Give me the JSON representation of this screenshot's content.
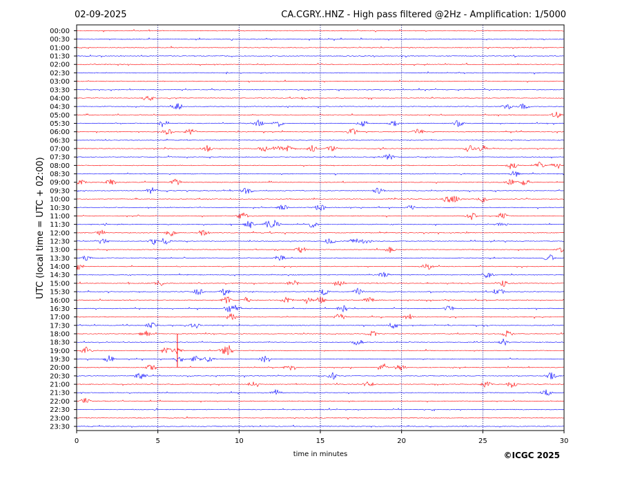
{
  "header": {
    "date": "02-09-2025",
    "title": "CA.CGRY..HNZ - High pass filtered @2Hz - Amplification: 1/5000"
  },
  "footer": {
    "copyright": "©ICGC 2025"
  },
  "colors": {
    "trace_a": "#ff0000",
    "trace_b": "#0000ff",
    "axis": "#000000",
    "grid": "#000080"
  },
  "chart_data": {
    "type": "line",
    "chart_kind": "helicorder",
    "xlabel": "time in minutes",
    "ylabel": "UTC (local time = UTC + 02:00)",
    "xlim": [
      0,
      30
    ],
    "x_ticks": [
      "0",
      "5",
      "10",
      "15",
      "20",
      "25",
      "30"
    ],
    "vertical_gridlines_at": [
      5,
      10,
      15,
      20,
      25
    ],
    "rows": [
      "00:00",
      "00:30",
      "01:00",
      "01:30",
      "02:00",
      "02:30",
      "03:00",
      "03:30",
      "04:00",
      "04:30",
      "05:00",
      "05:30",
      "06:00",
      "06:30",
      "07:00",
      "07:30",
      "08:00",
      "08:30",
      "09:00",
      "09:30",
      "10:00",
      "10:30",
      "11:00",
      "11:30",
      "12:00",
      "12:30",
      "13:00",
      "13:30",
      "14:00",
      "14:30",
      "15:00",
      "15:30",
      "16:00",
      "16:30",
      "17:00",
      "17:30",
      "18:00",
      "18:30",
      "19:00",
      "19:30",
      "20:00",
      "20:30",
      "21:00",
      "21:30",
      "22:00",
      "22:30",
      "23:00",
      "23:30"
    ],
    "row_colors_alternate": [
      "#ff0000",
      "#0000ff"
    ],
    "events": [
      {
        "row": "04:00",
        "minutes": [
          4.4
        ]
      },
      {
        "row": "04:30",
        "minutes": [
          6.2,
          26.5,
          27.5
        ]
      },
      {
        "row": "05:00",
        "minutes": [
          29.5
        ]
      },
      {
        "row": "05:30",
        "minutes": [
          5.4,
          11.2,
          12.4,
          17.6,
          19.5,
          23.5
        ]
      },
      {
        "row": "06:00",
        "minutes": [
          5.6,
          7.0,
          17.0,
          21.0
        ]
      },
      {
        "row": "07:00",
        "minutes": [
          8.0,
          11.5,
          12.3,
          13.0,
          14.5,
          15.7,
          24.2,
          25.0
        ]
      },
      {
        "row": "07:30",
        "minutes": [
          19.2
        ]
      },
      {
        "row": "08:00",
        "minutes": [
          26.8,
          28.5,
          29.5
        ]
      },
      {
        "row": "08:30",
        "minutes": [
          27.0
        ]
      },
      {
        "row": "09:00",
        "minutes": [
          0.2,
          2.1,
          6.1,
          26.7,
          27.5
        ]
      },
      {
        "row": "09:30",
        "minutes": [
          4.6,
          10.5,
          18.6
        ]
      },
      {
        "row": "10:00",
        "minutes": [
          22.8,
          23.3,
          25.0
        ]
      },
      {
        "row": "10:30",
        "minutes": [
          12.7,
          15.0,
          20.5
        ]
      },
      {
        "row": "11:00",
        "minutes": [
          10.2,
          24.3,
          26.2
        ]
      },
      {
        "row": "11:30",
        "minutes": [
          10.6,
          11.8,
          12.2,
          14.5,
          26.2
        ]
      },
      {
        "row": "12:00",
        "minutes": [
          1.5,
          5.8,
          7.8
        ]
      },
      {
        "row": "12:30",
        "minutes": [
          1.6,
          4.8,
          5.5,
          15.6,
          17.1,
          17.8
        ]
      },
      {
        "row": "13:00",
        "minutes": [
          13.8,
          19.3,
          29.9
        ]
      },
      {
        "row": "13:30",
        "minutes": [
          0.6,
          12.5,
          29.1
        ]
      },
      {
        "row": "14:00",
        "minutes": [
          0.1,
          21.6
        ]
      },
      {
        "row": "14:30",
        "minutes": [
          18.9,
          25.3
        ]
      },
      {
        "row": "15:00",
        "minutes": [
          5.1,
          13.3,
          16.2,
          26.3
        ]
      },
      {
        "row": "15:30",
        "minutes": [
          7.5,
          9.1,
          15.2,
          17.3,
          26.0
        ]
      },
      {
        "row": "16:00",
        "minutes": [
          9.2,
          10.5,
          13.0,
          14.2,
          15.0,
          18.0
        ]
      },
      {
        "row": "16:30",
        "minutes": [
          9.4,
          9.8,
          16.4,
          22.9
        ]
      },
      {
        "row": "17:00",
        "minutes": [
          9.5,
          16.2,
          20.5
        ]
      },
      {
        "row": "17:30",
        "minutes": [
          4.6,
          7.3,
          19.5
        ]
      },
      {
        "row": "18:00",
        "minutes": [
          4.2,
          18.2,
          26.5
        ]
      },
      {
        "row": "18:30",
        "minutes": [
          17.3,
          26.3
        ]
      },
      {
        "row": "19:00",
        "minutes": [
          0.6,
          5.5,
          6.2,
          9.1,
          9.4
        ]
      },
      {
        "row": "19:30",
        "minutes": [
          2.0,
          6.3,
          7.3,
          8.1,
          11.6
        ]
      },
      {
        "row": "20:00",
        "minutes": [
          4.6,
          13.1,
          18.8,
          19.9
        ]
      },
      {
        "row": "20:30",
        "minutes": [
          3.9,
          15.8,
          29.2
        ]
      },
      {
        "row": "21:00",
        "minutes": [
          10.9,
          18.0,
          25.2,
          26.8
        ]
      },
      {
        "row": "21:30",
        "minutes": [
          12.3,
          28.9
        ]
      },
      {
        "row": "22:00",
        "minutes": [
          0.5
        ]
      }
    ],
    "title": "CA.CGRY..HNZ - High pass filtered @2Hz - Amplification: 1/5000"
  }
}
